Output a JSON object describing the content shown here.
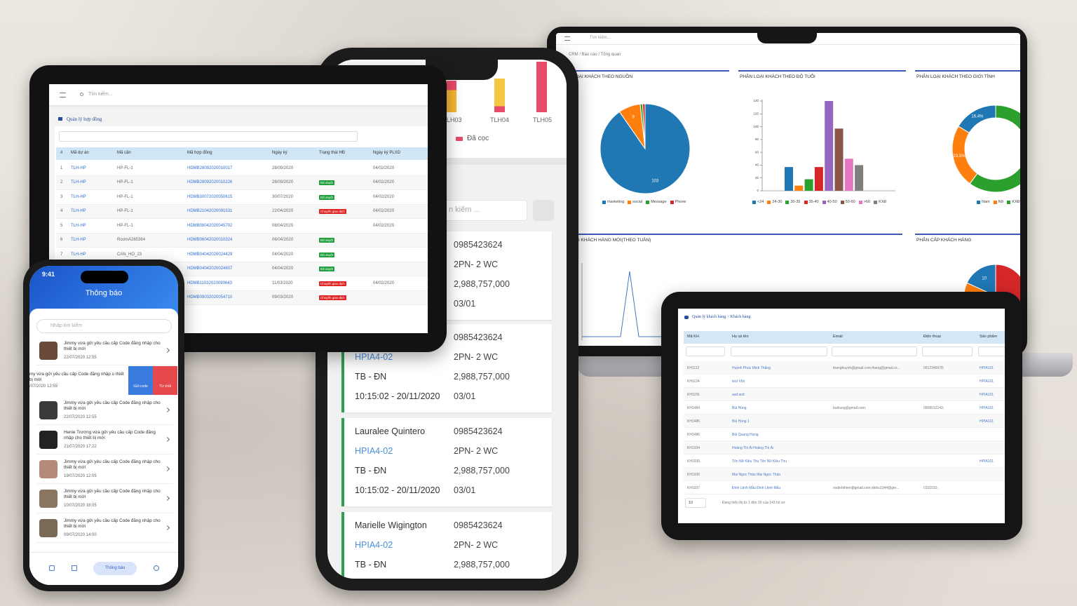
{
  "laptop": {
    "search_placeholder": "Tìm kiếm...",
    "breadcrumb": "CRM / Báo cáo / Tổng quan",
    "source_chart": {
      "title": "LOẠI KHÁCH THEO NGUỒN",
      "slices": [
        {
          "name": "marketing",
          "color": "#1f77b4",
          "value": 103,
          "label": "103"
        },
        {
          "name": "social",
          "color": "#ff7f0e",
          "value": 9,
          "label": "9"
        },
        {
          "name": "Message",
          "color": "#2ca02c",
          "value": 1
        },
        {
          "name": "Phone",
          "color": "#d62728",
          "value": 1
        }
      ]
    },
    "age_chart": {
      "title": "PHÂN LOẠI KHÁCH THEO ĐỘ TUỔI",
      "ylim": [
        0,
        140
      ],
      "yticks": [
        0,
        20,
        40,
        60,
        80,
        100,
        120,
        140
      ],
      "bars": [
        {
          "name": "<24",
          "color": "#1f77b4",
          "value": 37
        },
        {
          "name": "24-30",
          "color": "#ff7f0e",
          "value": 8
        },
        {
          "name": "30-35",
          "color": "#2ca02c",
          "value": 18
        },
        {
          "name": "35-40",
          "color": "#d62728",
          "value": 37
        },
        {
          "name": "40-50",
          "color": "#9467bd",
          "value": 140
        },
        {
          "name": "50-60",
          "color": "#8c564b",
          "value": 97
        },
        {
          "name": ">60",
          "color": "#e377c2",
          "value": 50
        },
        {
          "name": "KXĐ",
          "color": "#7f7f7f",
          "value": 40
        }
      ]
    },
    "gender_chart": {
      "title": "PHÂN LOẠI KHÁCH THEO GIỚI TÍNH",
      "slices": [
        {
          "name": "Nam",
          "color": "#1f77b4",
          "value": 16.4,
          "label": "16.4%"
        },
        {
          "name": "Nữ",
          "color": "#ff7f0e",
          "value": 23.5,
          "label": "23.5%"
        },
        {
          "name": "KXĐ",
          "color": "#2ca02c",
          "value": 60.1
        }
      ]
    },
    "weekly_chart": {
      "title": "NG KHÁCH HÀNG MỚI(THEO TUẦN)"
    },
    "tier_chart": {
      "title": "PHÂN CẤP KHÁCH HÀNG",
      "slices": [
        {
          "color": "#1f77b4",
          "value": 10,
          "label": "10"
        },
        {
          "color": "#ff7f0e",
          "value": 12
        },
        {
          "color": "#2ca02c",
          "value": 3
        },
        {
          "color": "#d62728",
          "value": 30
        }
      ]
    }
  },
  "contracts": {
    "search_placeholder": "Tìm kiếm...",
    "page_title": "Quản lý hợp đồng",
    "columns": [
      "#",
      "Mã dự án",
      "Mã căn",
      "Mã hợp đồng",
      "Ngày ký",
      "Trạng thái HĐ",
      "Ngày ký PLXD"
    ],
    "rows": [
      {
        "no": "1",
        "project": "TLH-HP",
        "unit": "HP-FL-1",
        "contract": "HDMB28092020010017",
        "signed": "28/09/2020",
        "plxd": "04/02/2020"
      },
      {
        "no": "2",
        "project": "TLH-HP",
        "unit": "HP-FL-1",
        "contract": "HDMB28092020010226",
        "signed": "28/09/2020",
        "status": {
          "text": "Đã duyệt",
          "color": "#1e9e3a"
        },
        "plxd": "04/02/2020"
      },
      {
        "no": "3",
        "project": "TLH-HP",
        "unit": "HP-FL-1",
        "contract": "HDMB30072020050615",
        "signed": "30/07/2020",
        "status": {
          "text": "Đã duyệt",
          "color": "#1e9e3a"
        },
        "plxd": "04/02/2020"
      },
      {
        "no": "4",
        "project": "TLH-HP",
        "unit": "HP-FL-1",
        "contract": "HDMB21042020091531",
        "signed": "22/04/2020",
        "status": {
          "text": "Chuyển giao dịch",
          "color": "#e02424"
        },
        "plxd": "04/02/2020"
      },
      {
        "no": "5",
        "project": "TLH-HP",
        "unit": "HP-FL-1",
        "contract": "HDMB08042020045702",
        "signed": "08/04/2020",
        "plxd": "04/02/2020"
      },
      {
        "no": "6",
        "project": "TLH-HP",
        "unit": "RoomA265364",
        "contract": "HDMB06042020010324",
        "signed": "06/04/2020",
        "status": {
          "text": "Đã duyệt",
          "color": "#1e9e3a"
        }
      },
      {
        "no": "7",
        "project": "TLH-HP",
        "unit": "CAN_HO_23",
        "contract": "HDMB04042020024429",
        "signed": "04/04/2020",
        "status": {
          "text": "Đã duyệt",
          "color": "#1e9e3a"
        }
      },
      {
        "contract": "HDMB04042020024607",
        "signed": "04/04/2020",
        "status": {
          "text": "Đã duyệt",
          "color": "#1e9e3a"
        }
      },
      {
        "contract": "HDMB11032020090643",
        "signed": "11/03/2020",
        "status": {
          "text": "Chuyển giao dịch",
          "color": "#e02424"
        },
        "plxd": "04/02/2020"
      },
      {
        "contract": "HDMB09032020054710",
        "signed": "09/03/2020",
        "status": {
          "text": "Chuyển giao dịch",
          "color": "#e02424"
        }
      }
    ]
  },
  "sales_phone": {
    "chart_categories": [
      "LH03",
      "TLH04",
      "TLH05"
    ],
    "chart_legend": "Đã cọc",
    "search_placeholder": "n kiếm ...",
    "cards": [
      {
        "phone": "0985423624",
        "type": "2PN- 2 WC",
        "price": "2,988,757,000",
        "date": "03/01"
      },
      {
        "phone": "0985423624",
        "code": "HPIA4-02",
        "type": "2PN- 2 WC",
        "region": "TB - ĐN",
        "price": "2,988,757,000",
        "time": "10:15:02 - 20/11/2020",
        "date": "03/01"
      },
      {
        "name": "Lauralee Quintero",
        "phone": "0985423624",
        "code": "HPIA4-02",
        "type": "2PN- 2 WC",
        "region": "TB - ĐN",
        "price": "2,988,757,000",
        "time": "10:15:02 - 20/11/2020",
        "date": "03/01"
      },
      {
        "name": "Marielle Wigington",
        "phone": "0985423624",
        "code": "HPIA4-02",
        "type": "2PN- 2 WC",
        "region": "TB - ĐN",
        "price": "2,988,757,000"
      }
    ]
  },
  "notify_phone": {
    "clock": "9:41",
    "title": "Thông báo",
    "search_placeholder": "Nhập tìm kiếm",
    "items": [
      {
        "text": "Jimmy vừa gửi yêu cầu cấp Code đăng nhập cho thiết bị mới",
        "time": "22/07/2020 12:55"
      },
      {
        "text": "Jimmy vừa gửi yêu cầu cấp Code đăng nhập cho thiết bị mới",
        "time": "22/07/2020 12:55"
      },
      {
        "text": "Henie Trương vừa gửi yêu cầu cấp Code đăng nhập cho thiết bị mới",
        "time": "21/07/2020 17:22"
      },
      {
        "text": "Jimmy vừa gửi yêu cầu cấp Code đăng nhập cho thiết bị mới",
        "time": "19/07/2020 12:05"
      },
      {
        "text": "Jimmy vừa gửi yêu cầu cấp Code đăng nhập cho thiết bị mới",
        "time": "10/07/2020 18:05"
      },
      {
        "text": "Jimmy vừa gửi yêu cầu cấp Code đăng nhập cho thiết bị mới",
        "time": "09/07/2020 14:00"
      }
    ],
    "swiped_item": {
      "text": "my vừa gửi yêu cầu cấp Code đăng nhập o thiết bị mới",
      "time": "/07/2020 12:55",
      "actions": [
        "Gửi code",
        "Từ chối"
      ]
    },
    "nav_active": "Thông báo"
  },
  "customers": {
    "breadcrumb": "Quản lý khách hàng  >  Khách hàng",
    "columns": [
      "Mã KH",
      "Họ và tên",
      "Email",
      "Điện thoại",
      "Sản phẩm"
    ],
    "rows": [
      {
        "id": "KH1112",
        "name": "Huỳnh Phúc Minh Thắng",
        "email": "thanghuynh@gmail.com;thang@gmail.co...",
        "phone": "0912345678;",
        "product": "HPIA101"
      },
      {
        "id": "KH1124",
        "name": "test Văn",
        "product": "HPIA101"
      },
      {
        "id": "KH1156",
        "name": "asd asd",
        "product": "HPIA101"
      },
      {
        "id": "KH1484",
        "name": "Bùi Hùng",
        "email": "buihung@gmail.com;",
        "phone": "0908012143;",
        "product": "HPIA101"
      },
      {
        "id": "KH1485",
        "name": "Bùi Hùng 1",
        "product": "HPIA101"
      },
      {
        "id": "KH1486",
        "name": "Bùi Quang Hưng"
      },
      {
        "id": "KH1934",
        "name": "Hoàng Thị Ái Hoàng Thị Ái"
      },
      {
        "id": "KH1935",
        "name": "Tôn Nữ Kiều Thu Tôn Nữ Kiều Thu",
        "product": "HPIA101"
      },
      {
        "id": "KH1936",
        "name": "Mai Ngọc Thảo Mai Ngọc Thảo"
      },
      {
        "id": "KH1937",
        "name": "Đinh Lệnh Mẫu Đinh Lệnh Mẫu",
        "email": "vodinhthien@gmail.com;dinhu1944@gm...",
        "phone": "0101010;"
      }
    ],
    "page_size": "10",
    "summary": "Đang hiển thị từ 1 đến 10 của 143 hồ sơ"
  }
}
